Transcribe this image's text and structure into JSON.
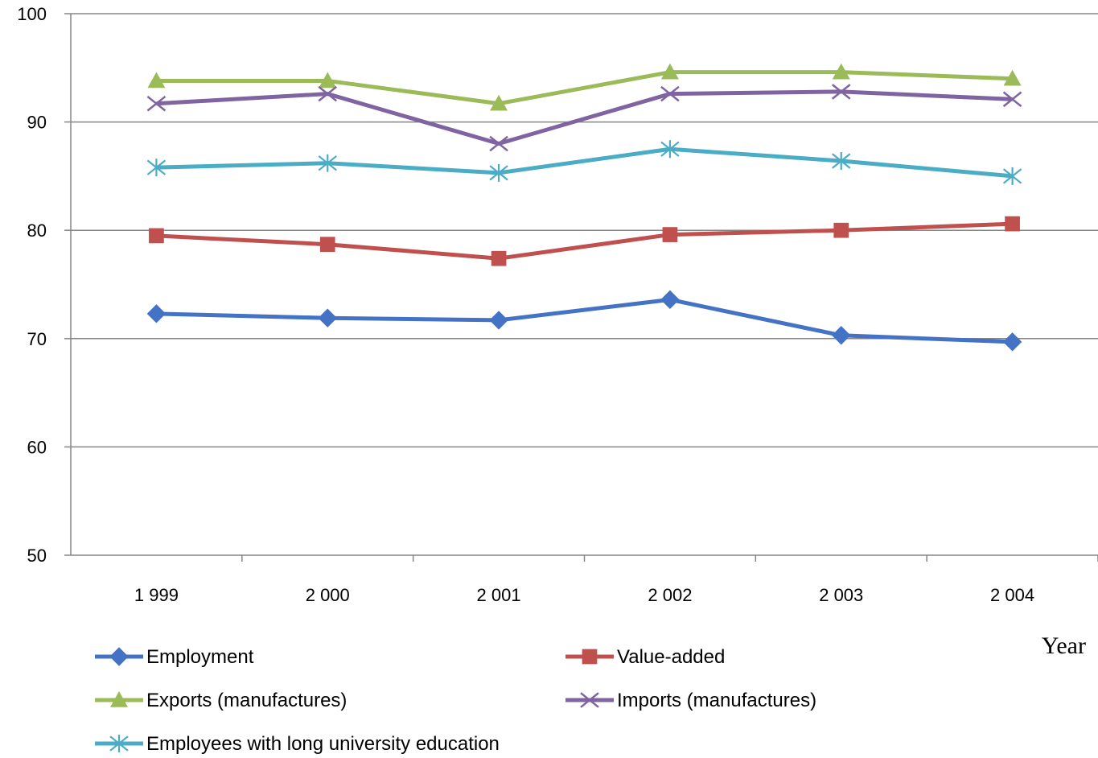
{
  "chart_data": {
    "type": "line",
    "categories": [
      "1 999",
      "2 000",
      "2 001",
      "2 002",
      "2 003",
      "2 004"
    ],
    "ylim": [
      50,
      100
    ],
    "yticks": [
      50,
      60,
      70,
      80,
      90,
      100
    ],
    "xlabel": "Year",
    "ylabel": "",
    "grid": true,
    "legend_position": "bottom",
    "series": [
      {
        "name": "Employment",
        "color": "#4472C4",
        "marker": "diamond",
        "values": [
          72.3,
          71.9,
          71.7,
          73.6,
          70.3,
          69.7
        ]
      },
      {
        "name": "Value-added",
        "color": "#C0504D",
        "marker": "square",
        "values": [
          79.5,
          78.7,
          77.4,
          79.6,
          80.0,
          80.6
        ]
      },
      {
        "name": "Exports (manufactures)",
        "color": "#9BBB59",
        "marker": "triangle",
        "values": [
          93.8,
          93.8,
          91.7,
          94.6,
          94.6,
          94.0
        ]
      },
      {
        "name": "Imports (manufactures)",
        "color": "#8064A2",
        "marker": "x",
        "values": [
          91.7,
          92.6,
          88.0,
          92.6,
          92.8,
          92.1
        ]
      },
      {
        "name": "Employees with long university education",
        "color": "#4BACC6",
        "marker": "star",
        "values": [
          85.8,
          86.2,
          85.3,
          87.5,
          86.4,
          85.0
        ]
      }
    ]
  }
}
